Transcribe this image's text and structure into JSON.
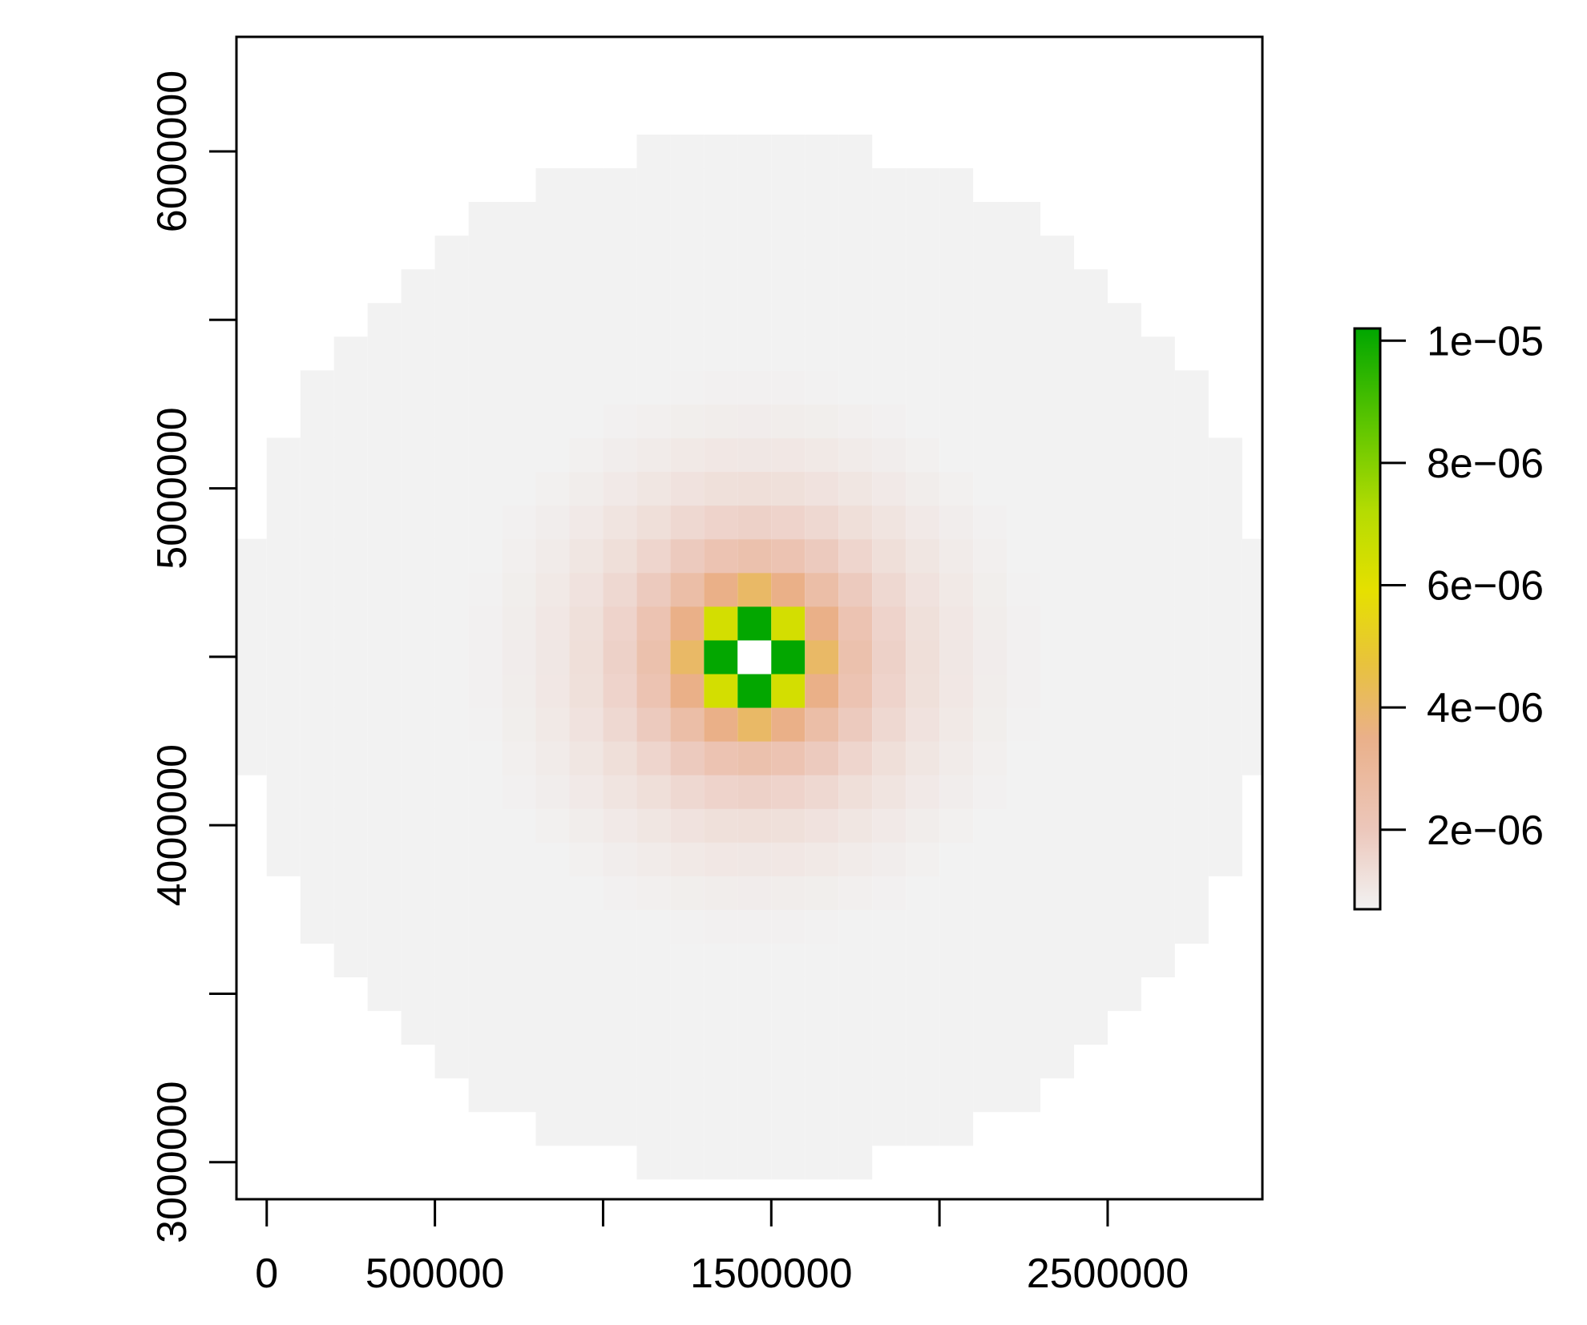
{
  "chart_data": {
    "type": "heatmap",
    "title": "",
    "xlabel": "",
    "ylabel": "",
    "x_range": [
      -90000,
      2960000
    ],
    "y_range": [
      2890000,
      6340000
    ],
    "x_ticks": [
      0,
      500000,
      1000000,
      1500000,
      2000000,
      2500000
    ],
    "x_tick_labels": [
      "0",
      "500000",
      "",
      "1500000",
      "",
      "2500000"
    ],
    "y_ticks": [
      3000000,
      3500000,
      4000000,
      4500000,
      5000000,
      5500000,
      6000000
    ],
    "y_tick_labels": [
      "3000000",
      "",
      "4000000",
      "",
      "5000000",
      "",
      "6000000"
    ],
    "cell_size": 100000,
    "center": [
      1450000,
      4500000
    ],
    "radius": 1500000,
    "peak_ring_value": 1e-05,
    "center_cell_value": null,
    "value_note": "",
    "grid": false,
    "legend": {
      "position": "right",
      "min": 7e-07,
      "max": 1.02e-05,
      "ticks": [
        1e-05,
        8e-06,
        6e-06,
        4e-06,
        2e-06
      ],
      "tick_labels": [
        "1e−05",
        "8e−06",
        "6e−06",
        "4e−06",
        "2e−06"
      ],
      "color_stops": [
        {
          "value": 7e-07,
          "color": "#f2f2f2"
        },
        {
          "value": 2e-06,
          "color": "#ecc7bb"
        },
        {
          "value": 3.5e-06,
          "color": "#eab08a"
        },
        {
          "value": 4.7e-06,
          "color": "#e8c23e"
        },
        {
          "value": 5.9e-06,
          "color": "#e6e000"
        },
        {
          "value": 7.2e-06,
          "color": "#b5dc02"
        },
        {
          "value": 8.6e-06,
          "color": "#5fc600"
        },
        {
          "value": 1.02e-05,
          "color": "#00a600"
        }
      ]
    }
  }
}
